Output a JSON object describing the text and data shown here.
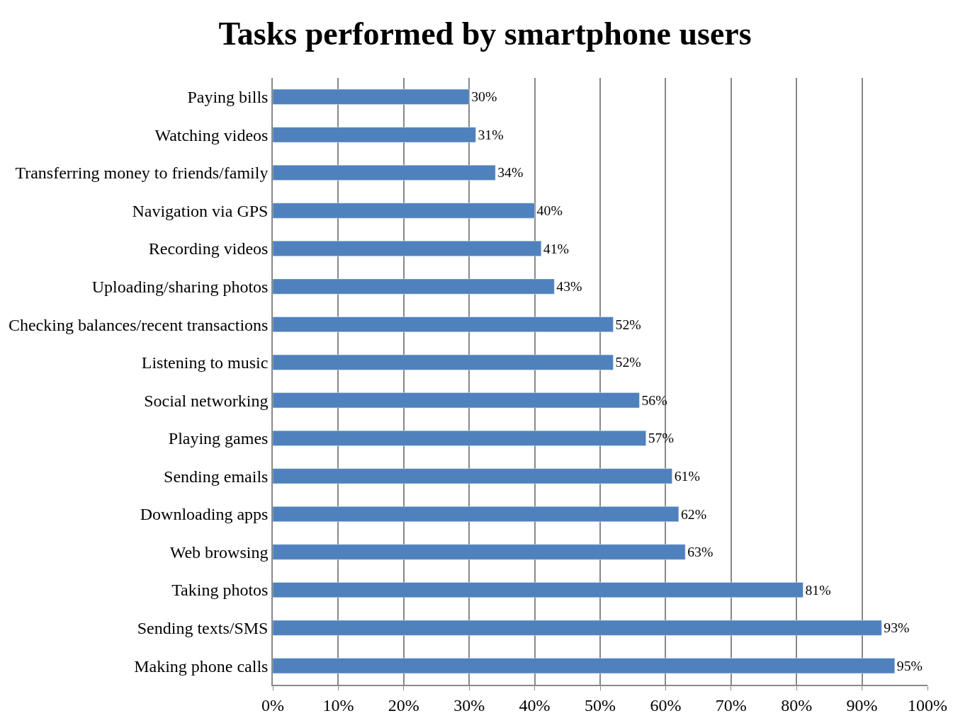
{
  "chart_data": {
    "type": "bar",
    "title": "Tasks performed by smartphone users",
    "orientation": "horizontal",
    "categories": [
      "Paying bills",
      "Watching videos",
      "Transferring money to friends/family",
      "Navigation via GPS",
      "Recording videos",
      "Uploading/sharing photos",
      "Checking balances/recent transactions",
      "Listening to music",
      "Social networking",
      "Playing games",
      "Sending emails",
      "Downloading apps",
      "Web browsing",
      "Taking photos",
      "Sending texts/SMS",
      "Making phone calls"
    ],
    "values": [
      30,
      31,
      34,
      40,
      41,
      43,
      52,
      52,
      56,
      57,
      61,
      62,
      63,
      81,
      93,
      95
    ],
    "value_labels": [
      "30%",
      "31%",
      "34%",
      "40%",
      "41%",
      "43%",
      "52%",
      "52%",
      "56%",
      "57%",
      "61%",
      "62%",
      "63%",
      "81%",
      "93%",
      "95%"
    ],
    "color": "#4f81bd",
    "xlim": [
      0,
      100
    ],
    "xticks": [
      {
        "value": 0,
        "label": "0%"
      },
      {
        "value": 10,
        "label": "10%"
      },
      {
        "value": 20,
        "label": "20%"
      },
      {
        "value": 30,
        "label": "30%"
      },
      {
        "value": 40,
        "label": "40%"
      },
      {
        "value": 50,
        "label": "50%"
      },
      {
        "value": 60,
        "label": "60%"
      },
      {
        "value": 70,
        "label": "70%"
      },
      {
        "value": 80,
        "label": "80%"
      },
      {
        "value": 90,
        "label": "90%"
      },
      {
        "value": 100,
        "label": "100%"
      }
    ],
    "grid": "x",
    "legend": false
  }
}
